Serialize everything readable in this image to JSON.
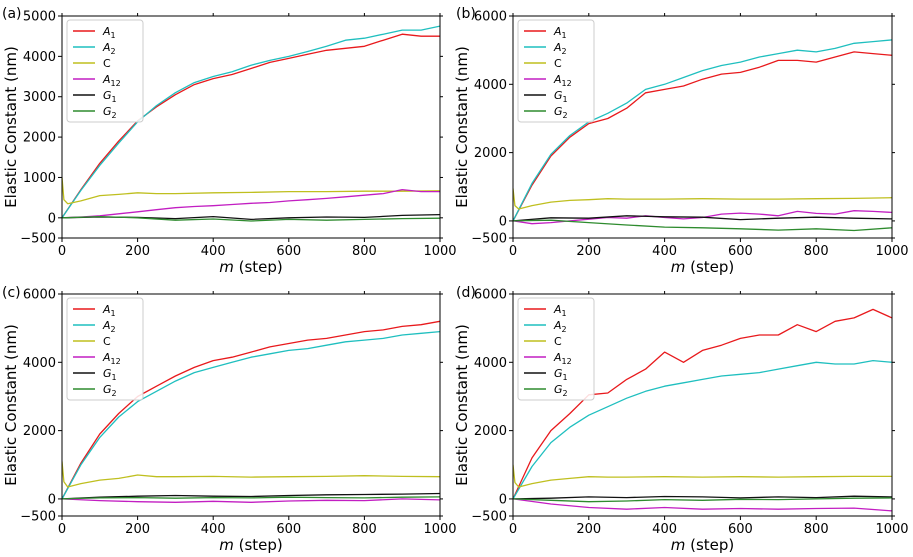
{
  "figure": {
    "x_label_var": "m",
    "x_label_unit": " (step)",
    "y_label": "Elastic Constant (nm)"
  },
  "chart_data": [
    {
      "type": "line",
      "panel": "(a)",
      "xlim": [
        0,
        1000
      ],
      "ylim": [
        -500,
        5000
      ],
      "xticks": [
        0,
        200,
        400,
        600,
        800,
        1000
      ],
      "yticks": [
        -500,
        0,
        1000,
        2000,
        3000,
        4000,
        5000
      ],
      "ytick_labels": [
        "−500",
        "0",
        "1000",
        "2000",
        "3000",
        "4000",
        "5000"
      ],
      "legend_position": "top-left",
      "series": [
        {
          "name": "A",
          "sub": "1",
          "color": "#e8191c",
          "x": [
            0,
            50,
            100,
            150,
            200,
            250,
            300,
            350,
            400,
            450,
            500,
            550,
            600,
            650,
            700,
            750,
            800,
            850,
            900,
            950,
            1000
          ],
          "values": [
            0,
            700,
            1350,
            1900,
            2400,
            2750,
            3050,
            3300,
            3450,
            3550,
            3700,
            3850,
            3950,
            4050,
            4150,
            4200,
            4250,
            4400,
            4550,
            4500,
            4500
          ]
        },
        {
          "name": "A",
          "sub": "2",
          "color": "#1fbfbf",
          "x": [
            0,
            50,
            100,
            150,
            200,
            250,
            300,
            350,
            400,
            450,
            500,
            550,
            600,
            650,
            700,
            750,
            800,
            850,
            900,
            950,
            1000
          ],
          "values": [
            0,
            680,
            1300,
            1850,
            2380,
            2780,
            3100,
            3350,
            3500,
            3620,
            3780,
            3900,
            4000,
            4120,
            4250,
            4400,
            4450,
            4550,
            4650,
            4650,
            4750
          ]
        },
        {
          "name": "C",
          "sub": "",
          "color": "#bfbf1f",
          "x": [
            0,
            5,
            15,
            50,
            100,
            150,
            200,
            250,
            300,
            400,
            500,
            600,
            700,
            800,
            900,
            1000
          ],
          "values": [
            1000,
            450,
            350,
            420,
            550,
            580,
            620,
            600,
            600,
            620,
            630,
            650,
            650,
            660,
            660,
            670
          ]
        },
        {
          "name": "A",
          "sub": "12",
          "color": "#c21ec2",
          "x": [
            0,
            50,
            100,
            150,
            200,
            250,
            300,
            350,
            400,
            450,
            500,
            550,
            600,
            650,
            700,
            750,
            800,
            850,
            900,
            950,
            1000
          ],
          "values": [
            0,
            20,
            50,
            100,
            150,
            200,
            250,
            280,
            300,
            330,
            360,
            380,
            420,
            450,
            480,
            520,
            560,
            600,
            700,
            650,
            650
          ]
        },
        {
          "name": "G",
          "sub": "1",
          "color": "#111111",
          "x": [
            0,
            100,
            200,
            300,
            400,
            500,
            600,
            700,
            800,
            900,
            1000
          ],
          "values": [
            0,
            20,
            10,
            -20,
            30,
            -40,
            0,
            20,
            10,
            60,
            80
          ]
        },
        {
          "name": "G",
          "sub": "2",
          "color": "#2e8b2e",
          "x": [
            0,
            100,
            200,
            300,
            400,
            500,
            600,
            700,
            800,
            900,
            1000
          ],
          "values": [
            0,
            30,
            0,
            -60,
            -30,
            -80,
            -40,
            -60,
            -40,
            -20,
            -10
          ]
        }
      ]
    },
    {
      "type": "line",
      "panel": "(b)",
      "xlim": [
        0,
        1000
      ],
      "ylim": [
        -500,
        6000
      ],
      "xticks": [
        0,
        200,
        400,
        600,
        800,
        1000
      ],
      "yticks": [
        -500,
        0,
        2000,
        4000,
        6000
      ],
      "ytick_labels": [
        "−500",
        "0",
        "2000",
        "4000",
        "6000"
      ],
      "legend_position": "top-left",
      "series": [
        {
          "name": "A",
          "sub": "1",
          "color": "#e8191c",
          "x": [
            0,
            50,
            100,
            150,
            200,
            250,
            300,
            350,
            400,
            450,
            500,
            550,
            600,
            650,
            700,
            750,
            800,
            850,
            900,
            950,
            1000
          ],
          "values": [
            0,
            1050,
            1900,
            2450,
            2850,
            3000,
            3300,
            3750,
            3850,
            3950,
            4150,
            4300,
            4350,
            4500,
            4700,
            4700,
            4650,
            4800,
            4950,
            4900,
            4850
          ]
        },
        {
          "name": "A",
          "sub": "2",
          "color": "#1fbfbf",
          "x": [
            0,
            50,
            100,
            150,
            200,
            250,
            300,
            350,
            400,
            450,
            500,
            550,
            600,
            650,
            700,
            750,
            800,
            850,
            900,
            950,
            1000
          ],
          "values": [
            0,
            1100,
            1950,
            2500,
            2900,
            3150,
            3450,
            3850,
            4000,
            4200,
            4400,
            4550,
            4650,
            4800,
            4900,
            5000,
            4950,
            5050,
            5200,
            5250,
            5300
          ]
        },
        {
          "name": "C",
          "sub": "",
          "color": "#bfbf1f",
          "x": [
            0,
            5,
            15,
            50,
            100,
            150,
            200,
            250,
            300,
            400,
            500,
            600,
            700,
            800,
            900,
            1000
          ],
          "values": [
            950,
            450,
            350,
            450,
            550,
            600,
            620,
            650,
            640,
            640,
            650,
            640,
            640,
            650,
            660,
            680
          ]
        },
        {
          "name": "A",
          "sub": "12",
          "color": "#c21ec2",
          "x": [
            0,
            50,
            100,
            150,
            200,
            250,
            300,
            350,
            400,
            450,
            500,
            550,
            600,
            650,
            700,
            750,
            800,
            850,
            900,
            950,
            1000
          ],
          "values": [
            0,
            -80,
            -50,
            0,
            50,
            100,
            80,
            150,
            100,
            60,
            100,
            200,
            230,
            200,
            150,
            280,
            220,
            200,
            300,
            280,
            250
          ]
        },
        {
          "name": "G",
          "sub": "1",
          "color": "#111111",
          "x": [
            0,
            100,
            200,
            300,
            400,
            500,
            600,
            700,
            800,
            900,
            1000
          ],
          "values": [
            0,
            90,
            80,
            150,
            120,
            110,
            40,
            80,
            110,
            80,
            60
          ]
        },
        {
          "name": "G",
          "sub": "2",
          "color": "#2e8b2e",
          "x": [
            0,
            100,
            200,
            300,
            400,
            500,
            600,
            700,
            800,
            900,
            1000
          ],
          "values": [
            0,
            20,
            -50,
            -120,
            -180,
            -200,
            -230,
            -270,
            -230,
            -280,
            -200
          ]
        }
      ]
    },
    {
      "type": "line",
      "panel": "(c)",
      "xlim": [
        0,
        1000
      ],
      "ylim": [
        -500,
        6000
      ],
      "xticks": [
        0,
        200,
        400,
        600,
        800,
        1000
      ],
      "yticks": [
        -500,
        0,
        2000,
        4000,
        6000
      ],
      "ytick_labels": [
        "−500",
        "0",
        "2000",
        "4000",
        "6000"
      ],
      "legend_position": "top-left",
      "series": [
        {
          "name": "A",
          "sub": "1",
          "color": "#e8191c",
          "x": [
            0,
            50,
            100,
            150,
            200,
            250,
            300,
            350,
            400,
            450,
            500,
            550,
            600,
            650,
            700,
            750,
            800,
            850,
            900,
            950,
            1000
          ],
          "values": [
            0,
            1050,
            1900,
            2500,
            3000,
            3300,
            3600,
            3850,
            4050,
            4150,
            4300,
            4450,
            4550,
            4650,
            4700,
            4800,
            4900,
            4950,
            5050,
            5100,
            5200
          ]
        },
        {
          "name": "A",
          "sub": "2",
          "color": "#1fbfbf",
          "x": [
            0,
            50,
            100,
            150,
            200,
            250,
            300,
            350,
            400,
            450,
            500,
            550,
            600,
            650,
            700,
            750,
            800,
            850,
            900,
            950,
            1000
          ],
          "values": [
            0,
            1000,
            1800,
            2400,
            2850,
            3150,
            3450,
            3700,
            3850,
            4000,
            4150,
            4250,
            4350,
            4400,
            4500,
            4600,
            4650,
            4700,
            4800,
            4850,
            4900
          ]
        },
        {
          "name": "C",
          "sub": "",
          "color": "#bfbf1f",
          "x": [
            0,
            5,
            15,
            50,
            100,
            150,
            200,
            250,
            300,
            400,
            500,
            600,
            700,
            800,
            900,
            1000
          ],
          "values": [
            1100,
            500,
            350,
            450,
            550,
            600,
            700,
            650,
            650,
            660,
            640,
            650,
            660,
            680,
            660,
            650
          ]
        },
        {
          "name": "A",
          "sub": "12",
          "color": "#c21ec2",
          "x": [
            0,
            100,
            200,
            300,
            400,
            500,
            600,
            700,
            800,
            900,
            1000
          ],
          "values": [
            0,
            -50,
            -80,
            -100,
            -70,
            -100,
            -60,
            -40,
            -50,
            0,
            -30
          ]
        },
        {
          "name": "G",
          "sub": "1",
          "color": "#111111",
          "x": [
            0,
            100,
            200,
            300,
            400,
            500,
            600,
            700,
            800,
            900,
            1000
          ],
          "values": [
            0,
            50,
            80,
            100,
            80,
            70,
            100,
            120,
            130,
            140,
            160
          ]
        },
        {
          "name": "G",
          "sub": "2",
          "color": "#2e8b2e",
          "x": [
            0,
            100,
            200,
            300,
            400,
            500,
            600,
            700,
            800,
            900,
            1000
          ],
          "values": [
            0,
            30,
            40,
            20,
            40,
            30,
            50,
            40,
            30,
            50,
            60
          ]
        }
      ]
    },
    {
      "type": "line",
      "panel": "(d)",
      "xlim": [
        0,
        1000
      ],
      "ylim": [
        -500,
        6000
      ],
      "xticks": [
        0,
        200,
        400,
        600,
        800,
        1000
      ],
      "yticks": [
        -500,
        0,
        2000,
        4000,
        6000
      ],
      "ytick_labels": [
        "−500",
        "0",
        "2000",
        "4000",
        "6000"
      ],
      "legend_position": "top-left",
      "series": [
        {
          "name": "A",
          "sub": "1",
          "color": "#e8191c",
          "x": [
            0,
            50,
            100,
            150,
            200,
            250,
            300,
            350,
            400,
            450,
            500,
            550,
            600,
            650,
            700,
            750,
            800,
            850,
            900,
            950,
            1000
          ],
          "values": [
            0,
            1200,
            2000,
            2500,
            3050,
            3100,
            3500,
            3800,
            4300,
            4000,
            4350,
            4500,
            4700,
            4800,
            4800,
            5100,
            4900,
            5200,
            5300,
            5550,
            5300
          ]
        },
        {
          "name": "A",
          "sub": "2",
          "color": "#1fbfbf",
          "x": [
            0,
            50,
            100,
            150,
            200,
            250,
            300,
            350,
            400,
            450,
            500,
            550,
            600,
            650,
            700,
            750,
            800,
            850,
            900,
            950,
            1000
          ],
          "values": [
            0,
            950,
            1650,
            2100,
            2450,
            2700,
            2950,
            3150,
            3300,
            3400,
            3500,
            3600,
            3650,
            3700,
            3800,
            3900,
            4000,
            3950,
            3950,
            4050,
            4000
          ]
        },
        {
          "name": "C",
          "sub": "",
          "color": "#bfbf1f",
          "x": [
            0,
            5,
            15,
            50,
            100,
            150,
            200,
            250,
            300,
            400,
            500,
            600,
            700,
            800,
            900,
            1000
          ],
          "values": [
            1000,
            480,
            350,
            450,
            550,
            600,
            650,
            640,
            640,
            650,
            640,
            650,
            640,
            650,
            660,
            660
          ]
        },
        {
          "name": "A",
          "sub": "12",
          "color": "#c21ec2",
          "x": [
            0,
            100,
            200,
            300,
            400,
            500,
            600,
            700,
            800,
            900,
            1000
          ],
          "values": [
            0,
            -150,
            -250,
            -300,
            -250,
            -300,
            -280,
            -300,
            -280,
            -270,
            -350
          ]
        },
        {
          "name": "G",
          "sub": "1",
          "color": "#111111",
          "x": [
            0,
            100,
            200,
            300,
            400,
            500,
            600,
            700,
            800,
            900,
            1000
          ],
          "values": [
            0,
            20,
            60,
            40,
            70,
            60,
            30,
            60,
            40,
            80,
            60
          ]
        },
        {
          "name": "G",
          "sub": "2",
          "color": "#2e8b2e",
          "x": [
            0,
            100,
            200,
            300,
            400,
            500,
            600,
            700,
            800,
            900,
            1000
          ],
          "values": [
            0,
            -40,
            -80,
            -60,
            -20,
            -40,
            -10,
            -20,
            0,
            20,
            30
          ]
        }
      ]
    }
  ]
}
